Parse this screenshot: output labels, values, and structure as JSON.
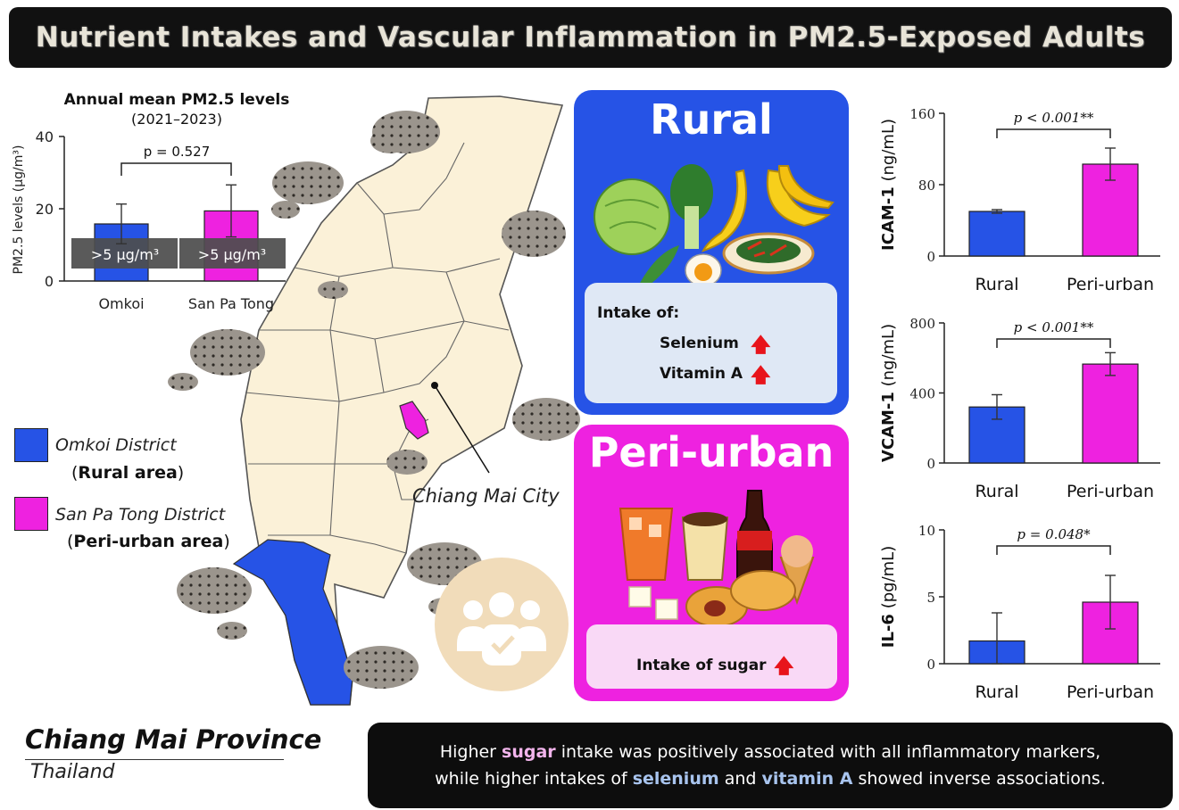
{
  "title": "Nutrient Intakes and Vascular Inflammation in PM2.5-Exposed Adults",
  "pm_chart": {
    "title": "Annual mean PM2.5 levels",
    "subtitle": "(2021–2023)",
    "ylabel": "PM2.5 levels (μg/m³)",
    "y_ticks": [
      "0",
      "20",
      "40"
    ],
    "p_value": "p = 0.527",
    "threshold_label": ">5 μg/m³"
  },
  "legend": {
    "omkoi_name": "Omkoi District",
    "omkoi_area": "Rural area",
    "spt_name": "San Pa Tong District",
    "spt_area": "Peri-urban area",
    "blue": "#2653e6",
    "magenta": "#ee22e0"
  },
  "map": {
    "city_label": "Chiang Mai City",
    "province": "Chiang Mai Province",
    "country": "Thailand"
  },
  "rural": {
    "title": "Rural",
    "intake_label": "Intake of:",
    "nutrient_1": "Selenium",
    "nutrient_2": "Vitamin A"
  },
  "peri": {
    "title": "Peri-urban",
    "intake_label": "Intake of sugar"
  },
  "bottom": {
    "line1_a": "Higher ",
    "line1_hl": "sugar",
    "line1_b": " intake was positively associated with all inflammatory markers,",
    "line2_a": "while higher intakes of ",
    "line2_hl1": "selenium",
    "line2_mid": " and ",
    "line2_hl2": "vitamin A",
    "line2_b": " showed inverse associations."
  },
  "chart_data": [
    {
      "type": "bar",
      "title": "Annual mean PM2.5 levels",
      "subtitle": "(2021–2023)",
      "ylabel": "PM2.5 levels (μg/m³)",
      "categories": [
        "Omkoi",
        "San Pa Tong"
      ],
      "values": [
        15.8,
        19.4
      ],
      "error": [
        5.5,
        7.2
      ],
      "ylim": [
        0,
        40
      ],
      "annotation": "p = 0.527",
      "colors": [
        "#2653e6",
        "#ee22e0"
      ]
    },
    {
      "type": "bar",
      "ylabel_bold": "ICAM-1",
      "ylabel_unit": "(ng/mL)",
      "categories": [
        "Rural",
        "Peri-urban"
      ],
      "values": [
        50,
        103
      ],
      "error": [
        2,
        18
      ],
      "ylim": [
        0,
        160
      ],
      "y_ticks": [
        "0",
        "80",
        "160"
      ],
      "annotation": "p < 0.001**",
      "colors": [
        "#2653e6",
        "#ee22e0"
      ]
    },
    {
      "type": "bar",
      "ylabel_bold": "VCAM-1",
      "ylabel_unit": "(ng/mL)",
      "categories": [
        "Rural",
        "Peri-urban"
      ],
      "values": [
        320,
        565
      ],
      "error": [
        70,
        65
      ],
      "ylim": [
        0,
        800
      ],
      "y_ticks": [
        "0",
        "400",
        "800"
      ],
      "annotation": "p < 0.001**",
      "colors": [
        "#2653e6",
        "#ee22e0"
      ]
    },
    {
      "type": "bar",
      "ylabel_bold": "IL-6",
      "ylabel_unit": "(pg/mL)",
      "categories": [
        "Rural",
        "Peri-urban"
      ],
      "values": [
        1.7,
        4.6
      ],
      "error": [
        2.1,
        2.0
      ],
      "ylim": [
        0,
        10
      ],
      "y_ticks": [
        "0",
        "5",
        "10"
      ],
      "annotation": "p = 0.048*",
      "colors": [
        "#2653e6",
        "#ee22e0"
      ]
    }
  ]
}
